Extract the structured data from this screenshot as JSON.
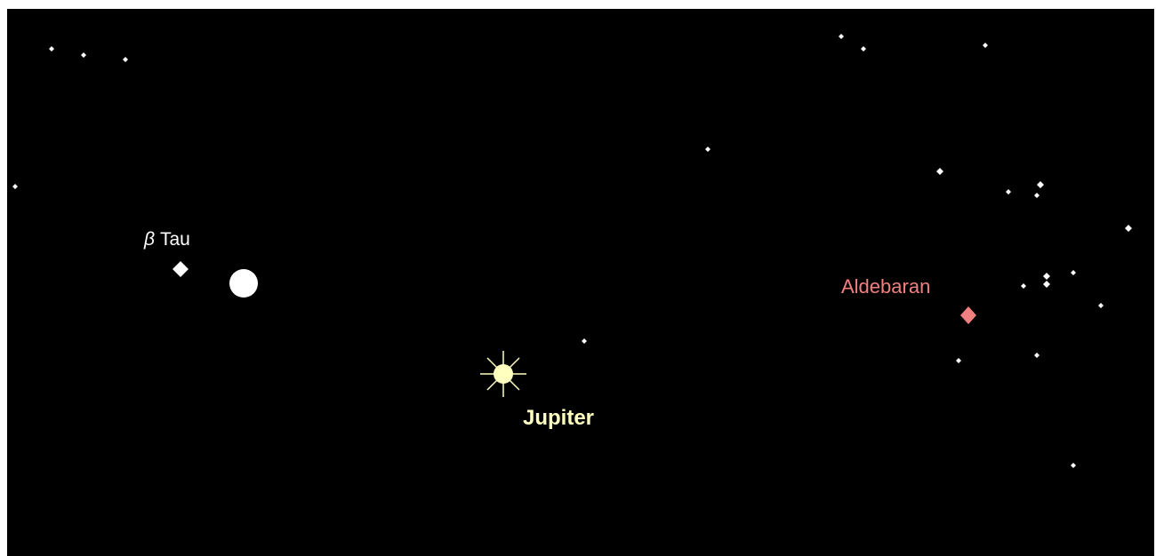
{
  "labels": {
    "beta_tau": {
      "symbol": "β",
      "name": "Tau"
    },
    "jupiter": "Jupiter",
    "aldebaran": "Aldebaran"
  }
}
